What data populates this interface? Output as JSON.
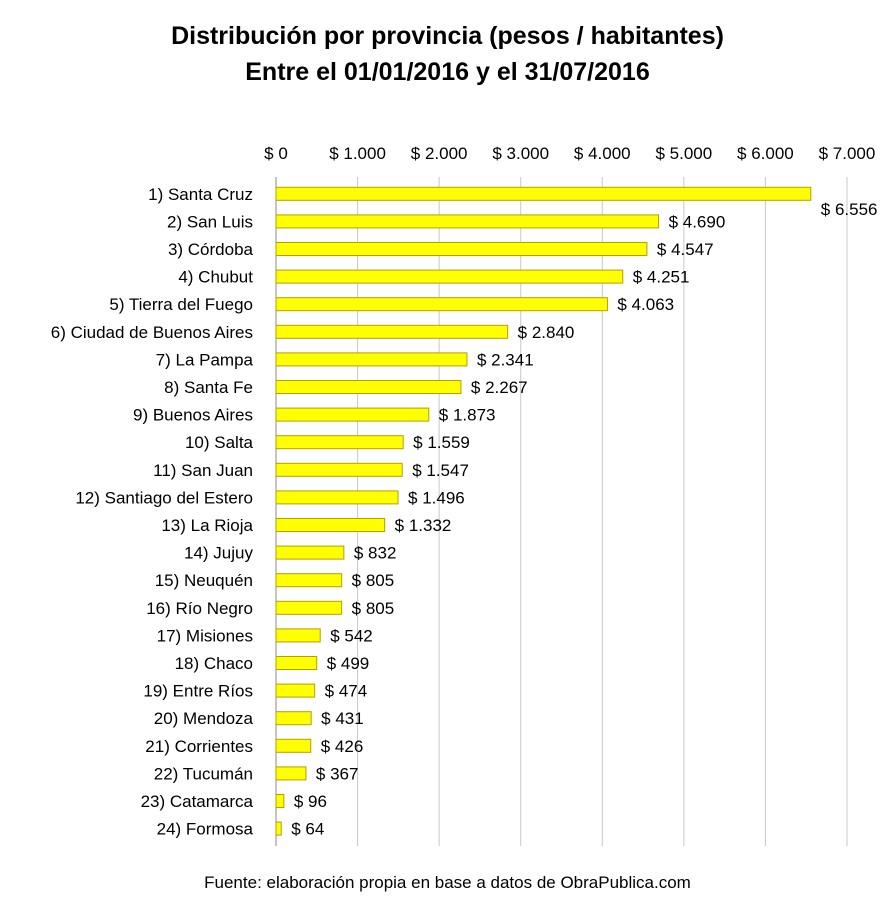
{
  "chart_data": {
    "type": "bar",
    "orientation": "horizontal",
    "title": "Distribución por provincia (pesos / habitantes)",
    "subtitle": "Entre el 01/01/2016 y el 31/07/2016",
    "xlim": [
      0,
      7000
    ],
    "x_ticks": [
      0,
      1000,
      2000,
      3000,
      4000,
      5000,
      6000,
      7000
    ],
    "x_tick_labels": [
      "$ 0",
      "$ 1.000",
      "$ 2.000",
      "$ 3.000",
      "$ 4.000",
      "$ 5.000",
      "$ 6.000",
      "$ 7.000"
    ],
    "x_axis_position": "top",
    "grid": true,
    "bar_color": "#FFFF00",
    "bar_edge_color": "#B5A000",
    "categories": [
      "1) Santa Cruz",
      "2) San Luis",
      "3) Córdoba",
      "4) Chubut",
      "5) Tierra del Fuego",
      "6) Ciudad de Buenos Aires",
      "7) La Pampa",
      "8) Santa Fe",
      "9) Buenos Aires",
      "10) Salta",
      "11) San Juan",
      "12) Santiago del Estero",
      "13) La Rioja",
      "14) Jujuy",
      "15) Neuquén",
      "16) Río Negro",
      "17) Misiones",
      "18) Chaco",
      "19) Entre Ríos",
      "20) Mendoza",
      "21) Corrientes",
      "22) Tucumán",
      "23) Catamarca",
      "24) Formosa"
    ],
    "values": [
      6556,
      4690,
      4547,
      4251,
      4063,
      2840,
      2341,
      2267,
      1873,
      1559,
      1547,
      1496,
      1332,
      832,
      805,
      805,
      542,
      499,
      474,
      431,
      426,
      367,
      96,
      64
    ],
    "data_labels": [
      "$ 6.556",
      "$ 4.690",
      "$ 4.547",
      "$ 4.251",
      "$ 4.063",
      "$ 2.840",
      "$ 2.341",
      "$ 2.267",
      "$ 1.873",
      "$ 1.559",
      "$ 1.547",
      "$ 1.496",
      "$ 1.332",
      "$ 832",
      "$ 805",
      "$ 805",
      "$ 542",
      "$ 499",
      "$ 474",
      "$ 431",
      "$ 426",
      "$ 367",
      "$ 96",
      "$ 64"
    ]
  },
  "footer": "Fuente: elaboración propia en base a datos de ObraPublica.com"
}
